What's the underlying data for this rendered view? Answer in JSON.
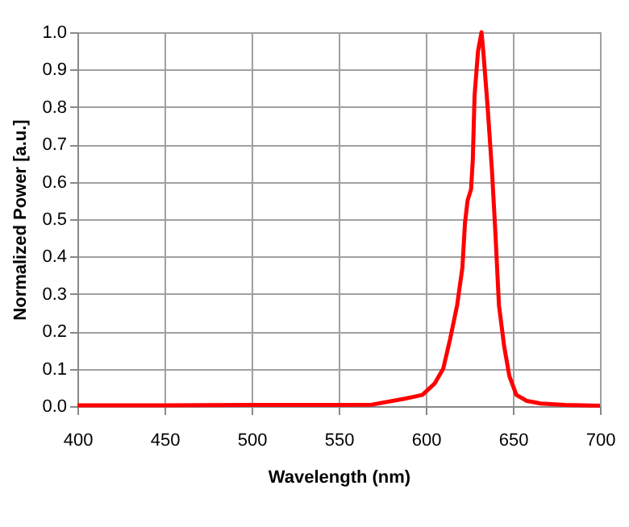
{
  "chart_data": {
    "type": "line",
    "xlabel": "Wavelength (nm)",
    "ylabel": "Normalized Power [a.u.]",
    "xlim": [
      400,
      700
    ],
    "xticks": [
      400,
      450,
      500,
      550,
      600,
      650,
      700
    ],
    "ylim": [
      0,
      1
    ],
    "yticks": [
      {
        "value": 0,
        "label": "0.0"
      },
      0.1,
      0.2,
      0.3,
      0.4,
      0.5,
      0.6,
      0.7,
      0.8,
      0.9,
      {
        "value": 1,
        "label": "1.0"
      }
    ],
    "grid": true,
    "marker": "none",
    "line_style": "solid",
    "series": [
      {
        "color": "#ff0000",
        "x": [
          400,
          450,
          500,
          550,
          569,
          588,
          598,
          605,
          610,
          614,
          618,
          621,
          622.5,
          624,
          626,
          627,
          628,
          630,
          632,
          633,
          635.5,
          638,
          640,
          642,
          645,
          648,
          652,
          658,
          666,
          680,
          700
        ],
        "values": [
          0.002,
          0.002,
          0.003,
          0.003,
          0.004,
          0.02,
          0.03,
          0.06,
          0.1,
          0.18,
          0.27,
          0.37,
          0.49,
          0.55,
          0.58,
          0.66,
          0.83,
          0.95,
          1.0,
          0.95,
          0.8,
          0.63,
          0.46,
          0.27,
          0.16,
          0.08,
          0.03,
          0.014,
          0.007,
          0.003,
          0.001
        ]
      }
    ]
  }
}
